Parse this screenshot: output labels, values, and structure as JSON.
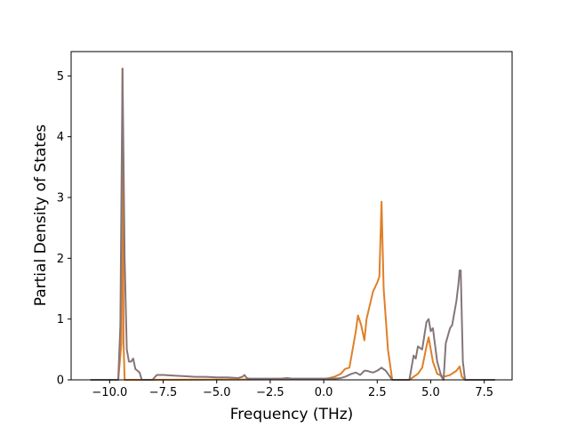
{
  "chart_data": {
    "type": "line",
    "title": "",
    "xlabel": "Frequency (THz)",
    "ylabel": "Partial Density of States",
    "xlim": [
      -11.8,
      8.8
    ],
    "ylim": [
      0,
      5.4
    ],
    "x_ticks": [
      -10.0,
      -7.5,
      -5.0,
      -2.5,
      0.0,
      2.5,
      5.0,
      7.5
    ],
    "x_tick_labels": [
      "−10.0",
      "−7.5",
      "−5.0",
      "−2.5",
      "0.0",
      "2.5",
      "5.0",
      "7.5"
    ],
    "y_ticks": [
      0,
      1,
      2,
      3,
      4,
      5
    ],
    "y_tick_labels": [
      "0",
      "1",
      "2",
      "3",
      "4",
      "5"
    ],
    "grid": false,
    "legend": "none",
    "series": [
      {
        "color": "#e07f28",
        "x": [
          -10.9,
          -9.6,
          -9.45,
          -9.4,
          -9.35,
          -9.3,
          -8.5,
          0.0,
          0.5,
          0.8,
          1.0,
          1.2,
          1.3,
          1.5,
          1.6,
          1.75,
          1.9,
          2.0,
          2.3,
          2.5,
          2.6,
          2.7,
          2.8,
          3.0,
          3.2,
          4.0,
          4.4,
          4.6,
          4.8,
          4.9,
          5.1,
          5.3,
          5.6,
          5.9,
          6.2,
          6.35,
          6.45,
          6.6,
          8.0
        ],
        "y": [
          0,
          0,
          0.6,
          5.12,
          0.6,
          0,
          0,
          0.01,
          0.05,
          0.1,
          0.18,
          0.2,
          0.4,
          0.8,
          1.06,
          0.9,
          0.65,
          1.0,
          1.45,
          1.6,
          1.7,
          2.93,
          1.5,
          0.5,
          0,
          0,
          0.1,
          0.2,
          0.55,
          0.7,
          0.3,
          0.1,
          0.05,
          0.08,
          0.15,
          0.22,
          0.05,
          0,
          0
        ]
      },
      {
        "color": "#857678",
        "x": [
          -10.9,
          -9.6,
          -9.5,
          -9.4,
          -9.3,
          -9.2,
          -9.1,
          -9.0,
          -8.9,
          -8.8,
          -8.6,
          -8.5,
          -8.4,
          -8.0,
          -7.8,
          -7.5,
          -7.0,
          -6.5,
          -6.0,
          -5.5,
          -5.0,
          -4.5,
          -4.0,
          -3.8,
          -3.7,
          -3.6,
          -3.5,
          -3.0,
          -2.5,
          -2.0,
          -1.7,
          -1.5,
          -1.0,
          -0.5,
          0.0,
          0.5,
          0.8,
          1.0,
          1.3,
          1.5,
          1.7,
          1.9,
          2.0,
          2.3,
          2.5,
          2.7,
          2.9,
          3.0,
          3.2,
          4.0,
          4.2,
          4.3,
          4.4,
          4.6,
          4.8,
          4.9,
          5.0,
          5.1,
          5.3,
          5.5,
          5.6,
          5.7,
          5.9,
          6.0,
          6.1,
          6.2,
          6.3,
          6.35,
          6.4,
          6.5,
          6.6,
          8.0
        ],
        "y": [
          0,
          0,
          0.9,
          5.12,
          2.0,
          0.5,
          0.3,
          0.3,
          0.35,
          0.18,
          0.12,
          0,
          0,
          0,
          0.08,
          0.08,
          0.07,
          0.06,
          0.05,
          0.05,
          0.04,
          0.04,
          0.03,
          0.05,
          0.08,
          0.03,
          0.02,
          0.02,
          0.02,
          0.02,
          0.03,
          0.02,
          0.02,
          0.02,
          0.02,
          0.02,
          0.03,
          0.05,
          0.1,
          0.12,
          0.08,
          0.15,
          0.15,
          0.12,
          0.15,
          0.2,
          0.15,
          0.1,
          0,
          0,
          0.4,
          0.35,
          0.55,
          0.5,
          0.95,
          1.0,
          0.8,
          0.85,
          0.3,
          0.05,
          0.0,
          0.6,
          0.85,
          0.9,
          1.1,
          1.3,
          1.6,
          1.8,
          1.8,
          0.3,
          0,
          0
        ]
      }
    ]
  }
}
